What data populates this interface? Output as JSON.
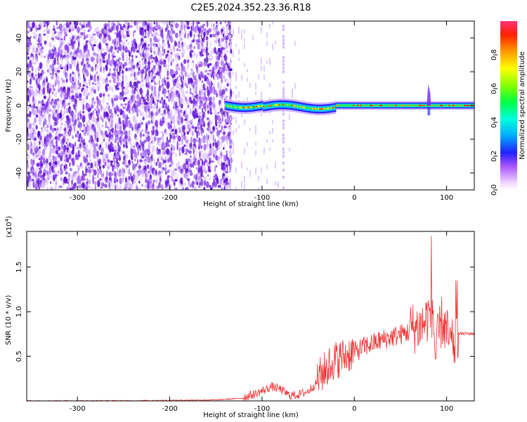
{
  "title": "C2E5.2024.352.23.36.R18",
  "chart_data": [
    {
      "type": "heatmap",
      "xlabel": "Height of straight line (km)",
      "ylabel": "Frequency (Hz)",
      "xlim": [
        -355,
        130
      ],
      "ylim": [
        -50,
        50
      ],
      "x_ticks": [
        -300,
        -200,
        -100,
        0,
        100
      ],
      "y_ticks": [
        -40,
        -20,
        0,
        20,
        40
      ],
      "colorbar": {
        "label": "Normalized spectral amplitude",
        "range": [
          0.0,
          1.0
        ],
        "ticks": [
          "0.0",
          "0.2",
          "0.4",
          "0.6",
          "0.8"
        ],
        "tick_values": [
          0.0,
          0.2,
          0.4,
          0.6,
          0.8
        ]
      },
      "features": {
        "noise_region_x": [
          -355,
          -135
        ],
        "signal_band_center_hz": 0,
        "signal_band_start_x": -140,
        "narrow_band_start_x": -20,
        "spike_x": 80
      }
    },
    {
      "type": "line",
      "xlabel": "Height of straight line (km)",
      "ylabel": "SNR (10 * v/v)",
      "scale_label": "(x10",
      "scale_exponent": "4",
      "scale_suffix": ")",
      "xlim": [
        -355,
        130
      ],
      "ylim": [
        0,
        1.9
      ],
      "x_ticks": [
        -300,
        -200,
        -100,
        0,
        100
      ],
      "y_ticks": [
        0.5,
        1.0,
        1.5
      ],
      "y_tick_labels": [
        "0.5",
        "1.0",
        "1.5"
      ],
      "color": "#ee3333",
      "series": [
        {
          "x": [
            -355,
            -250,
            -150,
            -120,
            -110,
            -100,
            -90,
            -80,
            -70,
            -60,
            -50,
            -40,
            -30,
            -20,
            -10,
            0,
            10,
            20,
            30,
            40,
            50,
            60,
            70,
            75,
            80,
            85,
            88,
            90,
            95,
            100,
            105,
            110,
            113,
            120,
            130
          ],
          "y": [
            0.0,
            0.0,
            0.01,
            0.03,
            0.06,
            0.1,
            0.15,
            0.12,
            0.05,
            0.06,
            0.1,
            0.2,
            0.32,
            0.42,
            0.46,
            0.52,
            0.58,
            0.62,
            0.66,
            0.69,
            0.72,
            0.75,
            0.77,
            0.8,
            0.9,
            0.95,
            0.4,
            0.6,
            0.85,
            0.7,
            0.55,
            0.6,
            0.75,
            0.75,
            0.75
          ]
        }
      ]
    }
  ]
}
